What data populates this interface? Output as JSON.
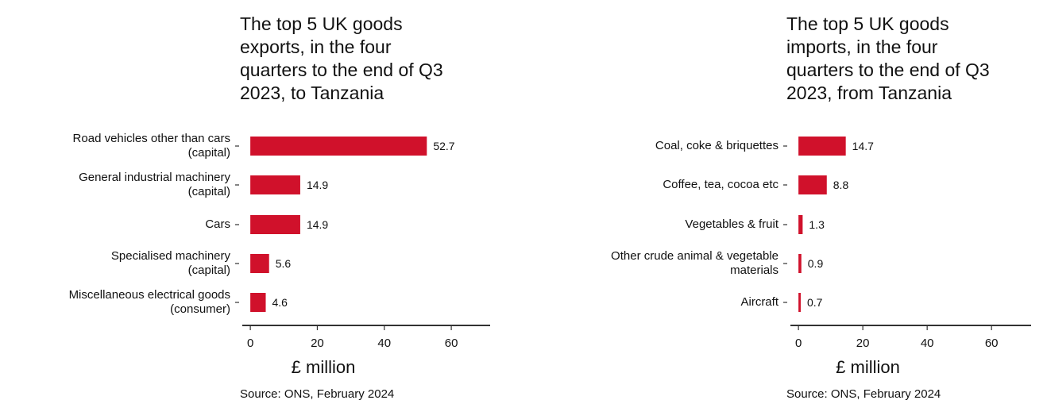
{
  "charts": [
    {
      "type": "bar",
      "orientation": "horizontal",
      "title": "The top 5 UK goods\nexports, in the four\nquarters to the end of Q3\n2023, to Tanzania",
      "categories": [
        "Road vehicles other than cars\n(capital)",
        "General industrial machinery\n(capital)",
        "Cars",
        "Specialised machinery\n(capital)",
        "Miscellaneous electrical goods\n(consumer)"
      ],
      "values": [
        52.7,
        14.9,
        14.9,
        5.6,
        4.6
      ],
      "color": "#d0112b",
      "xlim": [
        -2.4,
        71.6
      ],
      "xticks": [
        0,
        20,
        40,
        60
      ],
      "xlabel": "£ million",
      "source": "Source: ONS, February 2024"
    },
    {
      "type": "bar",
      "orientation": "horizontal",
      "title": "The top 5 UK goods\nimports, in the four\nquarters to the end of Q3\n2023, from Tanzania",
      "categories": [
        "Coal, coke & briquettes",
        "Coffee, tea, cocoa etc",
        "Vegetables & fruit",
        "Other crude animal & vegetable\nmaterials",
        "Aircraft"
      ],
      "values": [
        14.7,
        8.8,
        1.3,
        0.9,
        0.7
      ],
      "color": "#d0112b",
      "xlim": [
        -2.5,
        72.3
      ],
      "xticks": [
        0,
        20,
        40,
        60
      ],
      "xlabel": "£ million",
      "source": "Source: ONS, February 2024"
    }
  ]
}
